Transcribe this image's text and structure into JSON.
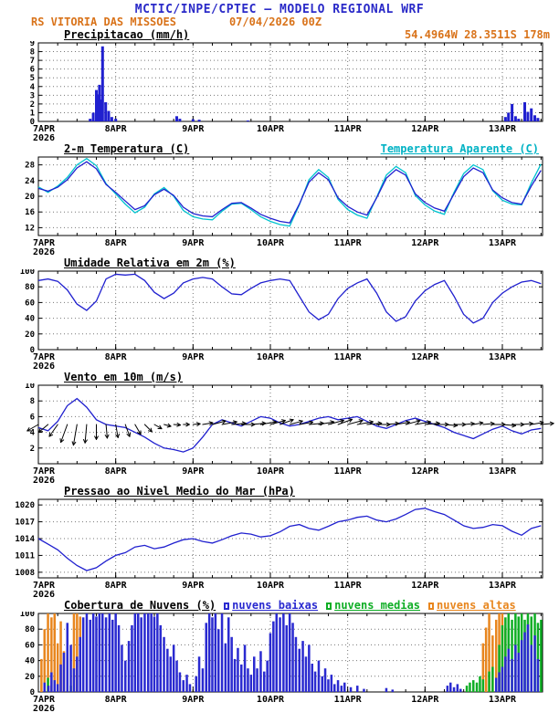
{
  "header": {
    "title": "MCTIC/INPE/CPTEC — MODELO REGIONAL WRF",
    "station": "RS VITORIA DAS MISSOES",
    "run_date": "07/04/2026 00Z",
    "location": "54.4964W 28.3511S 178m"
  },
  "colors": {
    "title_blue": "#2a2ac8",
    "subtitle_orange": "#d9731a",
    "line_blue": "#2020cf",
    "apparent_cyan": "#00c3cf",
    "cloud_low_blue": "#2a2ad0",
    "cloud_mid_green": "#0fae25",
    "cloud_high_orange": "#e8861e"
  },
  "x_axis": {
    "start": 7.0,
    "end": 13.52,
    "day_ticks": [
      7,
      8,
      9,
      10,
      11,
      12,
      13
    ],
    "day_labels": [
      "7APR",
      "8APR",
      "9APR",
      "10APR",
      "11APR",
      "12APR",
      "13APR"
    ],
    "year_label": "2026"
  },
  "chart_data": [
    {
      "type": "bar",
      "title": "Precipitacao (mm/h)",
      "ylim": [
        0,
        9
      ],
      "yticks": [
        0,
        1,
        2,
        3,
        4,
        5,
        6,
        7,
        8,
        9
      ],
      "color": "#2020cf",
      "bars": [
        [
          7.67,
          0.3
        ],
        [
          7.71,
          1.0
        ],
        [
          7.75,
          3.6
        ],
        [
          7.77,
          3.1
        ],
        [
          7.79,
          4.2
        ],
        [
          7.81,
          2.5
        ],
        [
          7.83,
          8.6
        ],
        [
          7.87,
          2.2
        ],
        [
          7.91,
          1.2
        ],
        [
          7.95,
          0.5
        ],
        [
          8.0,
          0.3
        ],
        [
          8.79,
          0.6
        ],
        [
          8.83,
          0.3
        ],
        [
          9.0,
          0.25
        ],
        [
          9.08,
          0.2
        ],
        [
          9.71,
          0.1
        ],
        [
          13.04,
          0.5
        ],
        [
          13.08,
          1.0
        ],
        [
          13.125,
          2.0
        ],
        [
          13.17,
          0.6
        ],
        [
          13.21,
          0.3
        ],
        [
          13.29,
          2.2
        ],
        [
          13.33,
          1.1
        ],
        [
          13.375,
          1.5
        ],
        [
          13.42,
          0.7
        ],
        [
          13.46,
          0.4
        ]
      ]
    },
    {
      "type": "line",
      "title": "2-m Temperatura (C)",
      "ylim": [
        10,
        30
      ],
      "yticks": [
        12,
        16,
        20,
        24,
        28
      ],
      "x_start": 7.0,
      "x_step": 0.125,
      "n": 53,
      "series": [
        {
          "name": "2-m Temperatura (C)",
          "color": "#2020cf",
          "values": [
            22,
            21.3,
            22.3,
            24.2,
            27.2,
            28.8,
            27,
            23,
            21,
            18.8,
            16.6,
            17.6,
            20.4,
            21.8,
            20.2,
            17.2,
            15.6,
            15,
            14.8,
            16.6,
            18.2,
            18.4,
            17,
            15.4,
            14.4,
            13.6,
            13.2,
            18,
            23.6,
            26,
            24.2,
            19.6,
            17.4,
            16,
            15.2,
            19.6,
            24.6,
            26.8,
            25.4,
            20.6,
            18.4,
            17,
            16.2,
            20.6,
            25,
            27.2,
            26,
            21.6,
            19.6,
            18.4,
            18,
            22.6,
            26.6
          ]
        },
        {
          "name": "Temperatura Aparente (C)",
          "color": "#00c3cf",
          "values": [
            22.4,
            21,
            22.6,
            24.8,
            28,
            29.6,
            27.8,
            23.2,
            20.6,
            18,
            15.8,
            17.2,
            20.6,
            22.2,
            20,
            16.4,
            14.8,
            14.2,
            14,
            16.2,
            18,
            18.2,
            16.6,
            14.8,
            13.6,
            12.8,
            12.4,
            17.8,
            24.2,
            26.8,
            24.8,
            19.2,
            16.6,
            15.2,
            14.4,
            19.8,
            25.4,
            27.6,
            26,
            20.2,
            17.8,
            16.2,
            15.4,
            21,
            25.8,
            28,
            26.8,
            21.4,
            19,
            18,
            17.8,
            23.4,
            28.2
          ]
        }
      ]
    },
    {
      "type": "line",
      "title": "Umidade Relativa em 2m (%)",
      "ylim": [
        0,
        100
      ],
      "yticks": [
        0,
        20,
        40,
        60,
        80,
        100
      ],
      "color": "#2020cf",
      "x_start": 7.0,
      "x_step": 0.125,
      "n": 53,
      "values": [
        88,
        90,
        87,
        76,
        58,
        50,
        62,
        90,
        96,
        95,
        96,
        88,
        73,
        65,
        72,
        85,
        90,
        92,
        90,
        80,
        71,
        70,
        78,
        85,
        88,
        90,
        88,
        68,
        48,
        38,
        45,
        65,
        78,
        85,
        90,
        72,
        48,
        36,
        42,
        62,
        75,
        83,
        88,
        68,
        45,
        34,
        40,
        60,
        72,
        80,
        86,
        88,
        84
      ]
    },
    {
      "type": "line",
      "title": "Vento em 10m (m/s)",
      "ylim": [
        0,
        10
      ],
      "yticks": [
        2,
        4,
        6,
        8,
        10
      ],
      "color": "#2020cf",
      "x_start": 7.0,
      "x_step": 0.125,
      "n": 53,
      "barb_anchor": 5.0,
      "values": [
        4.6,
        4.2,
        5.4,
        7.4,
        8.3,
        7.2,
        5.6,
        5,
        4.8,
        4.6,
        4,
        3.4,
        2.6,
        2,
        1.8,
        1.5,
        2,
        3.4,
        5,
        5.6,
        5.2,
        4.8,
        5.4,
        6,
        5.8,
        5.2,
        4.8,
        5,
        5.4,
        5.8,
        6,
        5.6,
        5.8,
        6,
        5.4,
        4.8,
        4.5,
        5,
        5.5,
        5.8,
        5.4,
        5,
        4.6,
        4,
        3.6,
        3.2,
        3.8,
        4.4,
        4.8,
        4.2,
        3.8,
        4.3,
        4.5
      ],
      "directions_deg": [
        150,
        140,
        125,
        110,
        100,
        95,
        90,
        85,
        80,
        70,
        60,
        45,
        30,
        15,
        5,
        0,
        -5,
        -10,
        -15,
        -10,
        -5,
        0,
        -5,
        -10,
        -15,
        -20,
        -15,
        -10,
        -5,
        -10,
        -15,
        -20,
        -15,
        -10,
        -5,
        0,
        -5,
        -10,
        -15,
        -10,
        -5,
        0,
        5,
        0,
        -5,
        -10,
        -5,
        0,
        5,
        0,
        -5,
        -10,
        -5
      ]
    },
    {
      "type": "line",
      "title": "Pressao ao Nivel Medio do Mar (hPa)",
      "ylim": [
        1007,
        1021
      ],
      "yticks": [
        1008,
        1011,
        1014,
        1017,
        1020
      ],
      "color": "#2020cf",
      "x_start": 7.0,
      "x_step": 0.125,
      "n": 53,
      "values": [
        1014,
        1013,
        1012,
        1010.5,
        1009.2,
        1008.3,
        1008.8,
        1010,
        1011,
        1011.5,
        1012.5,
        1012.8,
        1012.2,
        1012.5,
        1013.2,
        1013.8,
        1014,
        1013.5,
        1013.2,
        1013.8,
        1014.5,
        1015,
        1014.8,
        1014.3,
        1014.5,
        1015.2,
        1016.2,
        1016.5,
        1015.8,
        1015.5,
        1016.2,
        1017,
        1017.3,
        1017.8,
        1018,
        1017.3,
        1017,
        1017.5,
        1018.3,
        1019.2,
        1019.4,
        1018.8,
        1018.3,
        1017.3,
        1016.3,
        1015.8,
        1016,
        1016.5,
        1016.3,
        1015.3,
        1014.6,
        1015.8,
        1016.3
      ]
    },
    {
      "type": "bar",
      "title": "Cobertura de Nuvens (%)",
      "ylim": [
        0,
        100
      ],
      "yticks": [
        0,
        20,
        40,
        60,
        80,
        100
      ],
      "series": [
        {
          "name": "nuvens baixas",
          "color": "#2a2ad0",
          "bars": [
            [
              7.08,
              12
            ],
            [
              7.13,
              8
            ],
            [
              7.17,
              25
            ],
            [
              7.21,
              15
            ],
            [
              7.25,
              10
            ],
            [
              7.29,
              35
            ],
            [
              7.33,
              50
            ],
            [
              7.375,
              88
            ],
            [
              7.42,
              60
            ],
            [
              7.46,
              30
            ],
            [
              7.5,
              45
            ],
            [
              7.54,
              70
            ],
            [
              7.58,
              95
            ],
            [
              7.625,
              100
            ],
            [
              7.67,
              92
            ],
            [
              7.71,
              100
            ],
            [
              7.75,
              96
            ],
            [
              7.79,
              100
            ],
            [
              7.83,
              100
            ],
            [
              7.875,
              95
            ],
            [
              7.92,
              100
            ],
            [
              7.96,
              92
            ],
            [
              8.0,
              100
            ],
            [
              8.04,
              85
            ],
            [
              8.08,
              60
            ],
            [
              8.125,
              40
            ],
            [
              8.17,
              65
            ],
            [
              8.21,
              85
            ],
            [
              8.25,
              100
            ],
            [
              8.29,
              100
            ],
            [
              8.33,
              95
            ],
            [
              8.375,
              100
            ],
            [
              8.42,
              100
            ],
            [
              8.46,
              100
            ],
            [
              8.5,
              96
            ],
            [
              8.54,
              100
            ],
            [
              8.58,
              85
            ],
            [
              8.625,
              70
            ],
            [
              8.67,
              55
            ],
            [
              8.71,
              45
            ],
            [
              8.75,
              60
            ],
            [
              8.79,
              40
            ],
            [
              8.83,
              25
            ],
            [
              8.875,
              15
            ],
            [
              8.92,
              22
            ],
            [
              8.96,
              10
            ],
            [
              9.04,
              20
            ],
            [
              9.08,
              45
            ],
            [
              9.125,
              30
            ],
            [
              9.17,
              88
            ],
            [
              9.21,
              100
            ],
            [
              9.25,
              95
            ],
            [
              9.29,
              100
            ],
            [
              9.33,
              80
            ],
            [
              9.375,
              100
            ],
            [
              9.42,
              62
            ],
            [
              9.46,
              95
            ],
            [
              9.5,
              70
            ],
            [
              9.54,
              42
            ],
            [
              9.58,
              56
            ],
            [
              9.625,
              35
            ],
            [
              9.67,
              60
            ],
            [
              9.71,
              30
            ],
            [
              9.75,
              22
            ],
            [
              9.79,
              45
            ],
            [
              9.83,
              30
            ],
            [
              9.875,
              52
            ],
            [
              9.92,
              26
            ],
            [
              9.96,
              40
            ],
            [
              10.0,
              75
            ],
            [
              10.04,
              90
            ],
            [
              10.08,
              100
            ],
            [
              10.125,
              95
            ],
            [
              10.17,
              100
            ],
            [
              10.21,
              85
            ],
            [
              10.25,
              100
            ],
            [
              10.29,
              88
            ],
            [
              10.33,
              70
            ],
            [
              10.375,
              55
            ],
            [
              10.42,
              65
            ],
            [
              10.46,
              45
            ],
            [
              10.5,
              60
            ],
            [
              10.54,
              36
            ],
            [
              10.58,
              26
            ],
            [
              10.625,
              40
            ],
            [
              10.67,
              20
            ],
            [
              10.71,
              30
            ],
            [
              10.75,
              16
            ],
            [
              10.79,
              22
            ],
            [
              10.83,
              10
            ],
            [
              10.875,
              15
            ],
            [
              10.92,
              8
            ],
            [
              10.96,
              12
            ],
            [
              11.04,
              6
            ],
            [
              11.125,
              8
            ],
            [
              11.21,
              4
            ],
            [
              11.5,
              5
            ],
            [
              11.58,
              3
            ],
            [
              12.29,
              8
            ],
            [
              12.33,
              12
            ],
            [
              12.375,
              6
            ],
            [
              12.42,
              10
            ],
            [
              12.46,
              4
            ],
            [
              12.92,
              18
            ],
            [
              12.96,
              25
            ],
            [
              13.0,
              32
            ],
            [
              13.04,
              45
            ],
            [
              13.08,
              55
            ],
            [
              13.125,
              42
            ],
            [
              13.17,
              60
            ],
            [
              13.21,
              50
            ],
            [
              13.25,
              66
            ],
            [
              13.29,
              76
            ],
            [
              13.33,
              86
            ],
            [
              13.375,
              60
            ],
            [
              13.42,
              72
            ],
            [
              13.46,
              42
            ]
          ]
        },
        {
          "name": "nuvens medias",
          "color": "#0fae25",
          "bars": [
            [
              7.125,
              18
            ],
            [
              7.21,
              12
            ],
            [
              7.42,
              8
            ],
            [
              12.54,
              8
            ],
            [
              12.58,
              12
            ],
            [
              12.625,
              15
            ],
            [
              12.67,
              12
            ],
            [
              12.71,
              20
            ],
            [
              12.75,
              16
            ],
            [
              12.83,
              26
            ],
            [
              12.875,
              32
            ],
            [
              12.96,
              60
            ],
            [
              13.0,
              85
            ],
            [
              13.04,
              95
            ],
            [
              13.08,
              100
            ],
            [
              13.125,
              92
            ],
            [
              13.17,
              100
            ],
            [
              13.21,
              96
            ],
            [
              13.25,
              100
            ],
            [
              13.29,
              92
            ],
            [
              13.33,
              100
            ],
            [
              13.375,
              96
            ],
            [
              13.42,
              100
            ],
            [
              13.46,
              88
            ],
            [
              13.5,
              92
            ]
          ]
        },
        {
          "name": "nuvens altas",
          "color": "#e8861e",
          "bars": [
            [
              7.04,
              42
            ],
            [
              7.08,
              80
            ],
            [
              7.125,
              100
            ],
            [
              7.17,
              95
            ],
            [
              7.21,
              100
            ],
            [
              7.25,
              62
            ],
            [
              7.29,
              90
            ],
            [
              7.33,
              52
            ],
            [
              7.46,
              100
            ],
            [
              7.5,
              100
            ],
            [
              7.54,
              96
            ],
            [
              12.75,
              62
            ],
            [
              12.79,
              82
            ],
            [
              12.83,
              100
            ],
            [
              12.875,
              72
            ],
            [
              12.92,
              92
            ],
            [
              12.96,
              100
            ],
            [
              13.0,
              100
            ],
            [
              13.04,
              82
            ]
          ]
        }
      ]
    }
  ]
}
